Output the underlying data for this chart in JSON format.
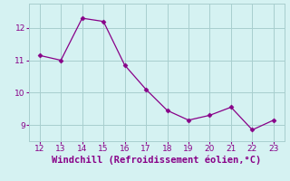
{
  "x": [
    12,
    13,
    14,
    15,
    16,
    17,
    18,
    19,
    20,
    21,
    22,
    23
  ],
  "y": [
    11.15,
    11.0,
    12.3,
    12.2,
    10.85,
    10.1,
    9.45,
    9.15,
    9.3,
    9.55,
    8.85,
    9.15
  ],
  "line_color": "#880088",
  "marker": "D",
  "marker_size": 2.5,
  "xlabel": "Windchill (Refroidissement éolien,°C)",
  "xlabel_fontsize": 7.5,
  "background_color": "#d5f2f2",
  "grid_color": "#a8cece",
  "tick_color": "#880088",
  "label_color": "#880088",
  "xlim": [
    11.5,
    23.5
  ],
  "ylim": [
    8.5,
    12.75
  ],
  "xticks": [
    12,
    13,
    14,
    15,
    16,
    17,
    18,
    19,
    20,
    21,
    22,
    23
  ],
  "yticks": [
    9,
    10,
    11,
    12
  ]
}
